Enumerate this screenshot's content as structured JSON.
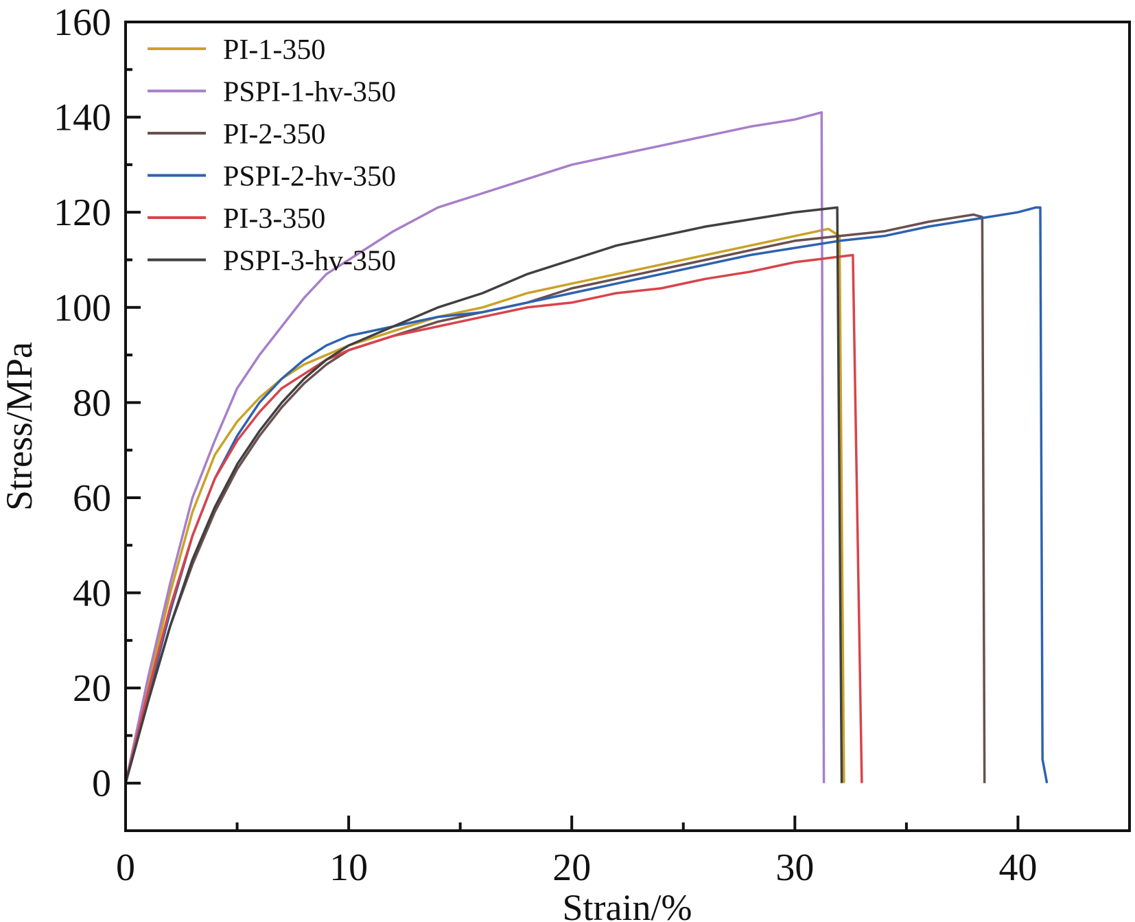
{
  "chart_data": {
    "type": "line",
    "title": "",
    "xlabel": "Strain/%",
    "ylabel": "Stress/MPa",
    "xlim": [
      0,
      45
    ],
    "ylim": [
      -10,
      160
    ],
    "x_ticks": [
      0,
      10,
      20,
      30,
      40
    ],
    "y_ticks": [
      0,
      20,
      40,
      60,
      80,
      100,
      120,
      140,
      160
    ],
    "x_tick_labels": [
      "0",
      "10",
      "20",
      "30",
      "40"
    ],
    "y_tick_labels": [
      "0",
      "20",
      "40",
      "60",
      "80",
      "100",
      "120",
      "140",
      "160"
    ],
    "grid": false,
    "legend_position": "top-left",
    "series": [
      {
        "name": "PI-1-350",
        "color": "#c9a227",
        "x": [
          0,
          1,
          2,
          3,
          4,
          5,
          6,
          7,
          8,
          9,
          10,
          12,
          14,
          16,
          18,
          20,
          22,
          24,
          26,
          28,
          30,
          31.5,
          32.0,
          32.2
        ],
        "y": [
          0,
          20,
          40,
          57,
          69,
          76,
          81,
          85,
          88,
          90,
          92,
          95,
          98,
          100,
          103,
          105,
          107,
          109,
          111,
          113,
          115,
          116.5,
          115,
          0
        ]
      },
      {
        "name": "PSPI-1-hv-350",
        "color": "#a77fc9",
        "x": [
          0,
          1,
          2,
          3,
          4,
          5,
          6,
          7,
          8,
          9,
          10,
          12,
          14,
          16,
          18,
          20,
          22,
          24,
          26,
          28,
          30,
          31.2,
          31.3
        ],
        "y": [
          0,
          22,
          42,
          60,
          72,
          83,
          90,
          96,
          102,
          107,
          110,
          116,
          121,
          124,
          127,
          130,
          132,
          134,
          136,
          138,
          139.5,
          141,
          0
        ]
      },
      {
        "name": "PI-2-350",
        "color": "#6b4f4f",
        "x": [
          0,
          1,
          2,
          3,
          4,
          5,
          6,
          7,
          8,
          9,
          10,
          12,
          14,
          16,
          18,
          20,
          22,
          24,
          26,
          28,
          30,
          32,
          34,
          36,
          38,
          38.4,
          38.5
        ],
        "y": [
          0,
          17,
          33,
          46,
          57,
          66,
          73,
          79,
          84,
          88,
          91,
          94,
          97,
          99,
          101,
          104,
          106,
          108,
          110,
          112,
          114,
          115,
          116,
          118,
          119.5,
          119,
          0
        ]
      },
      {
        "name": "PSPI-2-hv-350",
        "color": "#2e62b0",
        "x": [
          0,
          1,
          2,
          3,
          4,
          5,
          6,
          7,
          8,
          9,
          10,
          12,
          14,
          16,
          18,
          20,
          22,
          24,
          26,
          28,
          30,
          32,
          34,
          36,
          38,
          40,
          40.8,
          41.0,
          41.1,
          41.3
        ],
        "y": [
          0,
          18,
          36,
          52,
          64,
          73,
          80,
          85,
          89,
          92,
          94,
          96,
          98,
          99,
          101,
          103,
          105,
          107,
          109,
          111,
          112.5,
          114,
          115,
          117,
          118.5,
          120,
          121,
          121,
          5,
          0
        ]
      },
      {
        "name": "PI-3-350",
        "color": "#d8444a",
        "x": [
          0,
          1,
          2,
          3,
          4,
          5,
          6,
          7,
          8,
          9,
          10,
          12,
          14,
          16,
          18,
          20,
          22,
          24,
          26,
          28,
          30,
          32.6,
          33.0
        ],
        "y": [
          0,
          19,
          37,
          52,
          64,
          72,
          78,
          83,
          86,
          89,
          91,
          94,
          96,
          98,
          100,
          101,
          103,
          104,
          106,
          107.5,
          109.5,
          111,
          0
        ]
      },
      {
        "name": "PSPI-3-hv-350",
        "color": "#404040",
        "x": [
          0,
          1,
          2,
          3,
          4,
          5,
          6,
          7,
          8,
          9,
          10,
          12,
          14,
          16,
          18,
          20,
          22,
          24,
          26,
          28,
          30,
          31.9,
          32.1
        ],
        "y": [
          0,
          17,
          33,
          47,
          58,
          67,
          74,
          80,
          85,
          89,
          92,
          96,
          100,
          103,
          107,
          110,
          113,
          115,
          117,
          118.5,
          120,
          121,
          0
        ]
      }
    ]
  }
}
